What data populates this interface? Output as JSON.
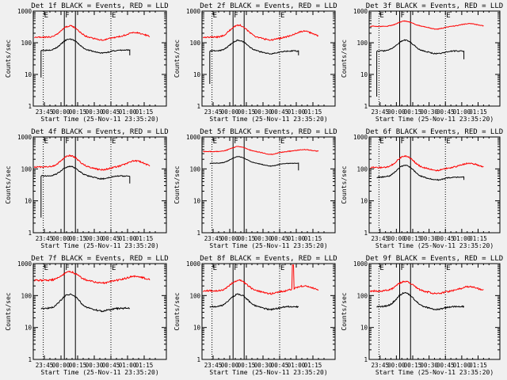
{
  "figure": {
    "common_title_suffix": "BLACK = Events, RED = LLD",
    "xlabel": "Start Time (25-Nov-11 23:35:20)",
    "ylabel": "Counts/sec",
    "colors": {
      "events": "#000000",
      "lld": "#ff0000"
    }
  },
  "chart_data": [
    {
      "type": "line",
      "title": "Det 1f BLACK = Events, RED = LLD",
      "xlabel": "Start Time (25-Nov-11 23:35:20)",
      "ylabel": "Counts/sec",
      "xlim": [
        -20,
        100
      ],
      "ylim": [
        1,
        1000
      ],
      "yscale": "log",
      "xticks": [
        "23:45",
        "00:00",
        "00:15",
        "00:30",
        "00:45",
        "01:00",
        "01:15"
      ],
      "xtick_pos": [
        -10,
        5,
        20,
        35,
        50,
        65,
        80
      ],
      "yticks": [
        "1",
        "10",
        "100",
        "1000"
      ],
      "marker_labels": [
        "E",
        "F",
        "E"
      ],
      "dotted_x": [
        -11,
        50
      ],
      "solid_x": [
        8,
        18
      ],
      "series": [
        {
          "name": "Events",
          "color": "#000000",
          "start": -13,
          "end": 67,
          "base": 58,
          "peak": 130,
          "startspike": 8,
          "endhook": 40,
          "noise": 0.04
        },
        {
          "name": "LLD",
          "color": "#ff0000",
          "start": -19,
          "end": 85,
          "base": 150,
          "peak": 340,
          "second": 210,
          "noise": 0.05
        }
      ]
    },
    {
      "type": "line",
      "title": "Det 2f BLACK = Events, RED = LLD",
      "xlabel": "Start Time (25-Nov-11 23:35:20)",
      "ylabel": "Counts/sec",
      "xlim": [
        -20,
        100
      ],
      "ylim": [
        1,
        1000
      ],
      "yscale": "log",
      "xticks": [
        "23:45",
        "00:00",
        "00:15",
        "00:30",
        "00:45",
        "01:00",
        "01:15"
      ],
      "xtick_pos": [
        -10,
        5,
        20,
        35,
        50,
        65,
        80
      ],
      "yticks": [
        "1",
        "10",
        "100",
        "1000"
      ],
      "marker_labels": [
        "E",
        "F",
        "E"
      ],
      "dotted_x": [
        -11,
        50
      ],
      "solid_x": [
        8,
        18
      ],
      "series": [
        {
          "name": "Events",
          "color": "#000000",
          "start": -13,
          "end": 67,
          "base": 55,
          "peak": 120,
          "startspike": 5,
          "endhook": 40,
          "noise": 0.04
        },
        {
          "name": "LLD",
          "color": "#ff0000",
          "start": -19,
          "end": 85,
          "base": 150,
          "peak": 360,
          "second": 230,
          "noise": 0.05
        }
      ]
    },
    {
      "type": "line",
      "title": "Det 3f BLACK = Events, RED = LLD",
      "xlabel": "Start Time (25-Nov-11 23:35:20)",
      "ylabel": "Counts/sec",
      "xlim": [
        -20,
        100
      ],
      "ylim": [
        1,
        1000
      ],
      "yscale": "log",
      "xticks": [
        "23:45",
        "00:00",
        "00:15",
        "00:30",
        "00:45",
        "01:00",
        "01:15"
      ],
      "xtick_pos": [
        -10,
        5,
        20,
        35,
        50,
        65,
        80
      ],
      "yticks": [
        "1",
        "10",
        "100",
        "1000"
      ],
      "marker_labels": [
        "E",
        "F",
        "E"
      ],
      "dotted_x": [
        -11,
        50
      ],
      "solid_x": [
        8,
        18
      ],
      "series": [
        {
          "name": "Events",
          "color": "#000000",
          "start": -13,
          "end": 67,
          "base": 55,
          "peak": 120,
          "startspike": 2,
          "endhook": 30,
          "noise": 0.04
        },
        {
          "name": "LLD",
          "color": "#ff0000",
          "start": -19,
          "end": 85,
          "base": 330,
          "peak": 480,
          "second": 400,
          "noise": 0.025
        }
      ]
    },
    {
      "type": "line",
      "title": "Det 4f BLACK = Events, RED = LLD",
      "xlabel": "Start Time (25-Nov-11 23:35:20)",
      "ylabel": "Counts/sec",
      "xlim": [
        -20,
        100
      ],
      "ylim": [
        1,
        1000
      ],
      "yscale": "log",
      "xticks": [
        "23:45",
        "00:00",
        "00:15",
        "00:30",
        "00:45",
        "01:00",
        "01:15"
      ],
      "xtick_pos": [
        -10,
        5,
        20,
        35,
        50,
        65,
        80
      ],
      "yticks": [
        "1",
        "10",
        "100",
        "1000"
      ],
      "marker_labels": [
        "E",
        "F",
        "E"
      ],
      "dotted_x": [
        -11,
        50
      ],
      "solid_x": [
        8,
        18
      ],
      "series": [
        {
          "name": "Events",
          "color": "#000000",
          "start": -13,
          "end": 67,
          "base": 60,
          "peak": 120,
          "startspike": 3,
          "endhook": 35,
          "noise": 0.04
        },
        {
          "name": "LLD",
          "color": "#ff0000",
          "start": -19,
          "end": 85,
          "base": 115,
          "peak": 260,
          "second": 180,
          "noise": 0.05
        }
      ]
    },
    {
      "type": "line",
      "title": "Det 5f BLACK = Events, RED = LLD",
      "xlabel": "Start Time (25-Nov-11 23:35:20)",
      "ylabel": "Counts/sec",
      "xlim": [
        -20,
        100
      ],
      "ylim": [
        1,
        1000
      ],
      "yscale": "log",
      "xticks": [
        "23:45",
        "00:00",
        "00:15",
        "00:30",
        "00:45",
        "01:00",
        "01:15"
      ],
      "xtick_pos": [
        -10,
        5,
        20,
        35,
        50,
        65,
        80
      ],
      "yticks": [
        "1",
        "10",
        "100",
        "1000"
      ],
      "marker_labels": [
        "E",
        "F",
        "E"
      ],
      "dotted_x": [
        -11,
        50
      ],
      "solid_x": [
        8,
        18
      ],
      "series": [
        {
          "name": "Events",
          "color": "#000000",
          "start": -13,
          "end": 67,
          "base": 150,
          "peak": 240,
          "startspike": null,
          "endhook": 90,
          "noise": 0.02
        },
        {
          "name": "LLD",
          "color": "#ff0000",
          "start": -19,
          "end": 85,
          "base": 350,
          "peak": 500,
          "second": 400,
          "noise": 0.025
        }
      ]
    },
    {
      "type": "line",
      "title": "Det 6f BLACK = Events, RED = LLD",
      "xlabel": "Start Time (25-Nov-11 23:35:20)",
      "ylabel": "Counts/sec",
      "xlim": [
        -20,
        100
      ],
      "ylim": [
        1,
        1000
      ],
      "yscale": "log",
      "xticks": [
        "23:45",
        "00:00",
        "00:15",
        "00:30",
        "00:45",
        "01:00",
        "01:15"
      ],
      "xtick_pos": [
        -10,
        5,
        20,
        35,
        50,
        65,
        80
      ],
      "yticks": [
        "1",
        "10",
        "100",
        "1000"
      ],
      "marker_labels": [
        "E",
        "F",
        "E"
      ],
      "dotted_x": [
        -11,
        50
      ],
      "solid_x": [
        8,
        18
      ],
      "series": [
        {
          "name": "Events",
          "color": "#000000",
          "start": -13,
          "end": 67,
          "base": 55,
          "peak": 130,
          "startspike": null,
          "endhook": 45,
          "noise": 0.04
        },
        {
          "name": "LLD",
          "color": "#ff0000",
          "start": -19,
          "end": 85,
          "base": 110,
          "peak": 250,
          "second": 150,
          "noise": 0.05
        }
      ]
    },
    {
      "type": "line",
      "title": "Det 7f BLACK = Events, RED = LLD",
      "xlabel": "Start Time (25-Nov-11 23:35:20)",
      "ylabel": "Counts/sec",
      "xlim": [
        -20,
        100
      ],
      "ylim": [
        1,
        1000
      ],
      "yscale": "log",
      "xticks": [
        "23:45",
        "00:00",
        "00:15",
        "00:30",
        "00:45",
        "01:00",
        "01:15"
      ],
      "xtick_pos": [
        -10,
        5,
        20,
        35,
        50,
        65,
        80
      ],
      "yticks": [
        "1",
        "10",
        "100",
        "1000"
      ],
      "marker_labels": [
        "E",
        "F",
        "E"
      ],
      "dotted_x": [
        -11,
        50
      ],
      "solid_x": [
        8,
        18
      ],
      "series": [
        {
          "name": "Events",
          "color": "#000000",
          "start": -13,
          "end": 67,
          "base": 40,
          "peak": 110,
          "startspike": null,
          "endhook": null,
          "noise": 0.06
        },
        {
          "name": "LLD",
          "color": "#ff0000",
          "start": -19,
          "end": 85,
          "base": 300,
          "peak": 550,
          "second": 400,
          "noise": 0.06
        }
      ]
    },
    {
      "type": "line",
      "title": "Det 8f BLACK = Events, RED = LLD",
      "xlabel": "Start Time (25-Nov-11 23:35:20)",
      "ylabel": "Counts/sec",
      "xlim": [
        -20,
        100
      ],
      "ylim": [
        1,
        1000
      ],
      "yscale": "log",
      "xticks": [
        "23:45",
        "00:00",
        "00:15",
        "00:30",
        "00:45",
        "01:00",
        "01:15"
      ],
      "xtick_pos": [
        -10,
        5,
        20,
        35,
        50,
        65,
        80
      ],
      "yticks": [
        "1",
        "10",
        "100",
        "1000"
      ],
      "marker_labels": [
        "E",
        "F",
        "E"
      ],
      "dotted_x": [
        -11,
        50
      ],
      "solid_x": [
        8,
        18
      ],
      "series": [
        {
          "name": "Events",
          "color": "#000000",
          "start": -13,
          "end": 67,
          "base": 45,
          "peak": 110,
          "startspike": null,
          "endhook": null,
          "noise": 0.05
        },
        {
          "name": "LLD",
          "color": "#ff0000",
          "start": -19,
          "end": 85,
          "base": 140,
          "peak": 300,
          "second": 200,
          "noise": 0.06,
          "flare_at": 62,
          "flare_peak": 900
        }
      ]
    },
    {
      "type": "line",
      "title": "Det 9f BLACK = Events, RED = LLD",
      "xlabel": "Start Time (25-Nov-11 23:35:20)",
      "ylabel": "Counts/sec",
      "xlim": [
        -20,
        100
      ],
      "ylim": [
        1,
        1000
      ],
      "yscale": "log",
      "xticks": [
        "23:45",
        "00:00",
        "00:15",
        "00:30",
        "00:45",
        "01:00",
        "01:15"
      ],
      "xtick_pos": [
        -10,
        5,
        20,
        35,
        50,
        65,
        80
      ],
      "yticks": [
        "1",
        "10",
        "100",
        "1000"
      ],
      "marker_labels": [
        "E",
        "F",
        "E"
      ],
      "dotted_x": [
        -11,
        50
      ],
      "solid_x": [
        8,
        18
      ],
      "series": [
        {
          "name": "Events",
          "color": "#000000",
          "start": -13,
          "end": 67,
          "base": 45,
          "peak": 120,
          "startspike": null,
          "endhook": null,
          "noise": 0.05
        },
        {
          "name": "LLD",
          "color": "#ff0000",
          "start": -19,
          "end": 85,
          "base": 140,
          "peak": 280,
          "second": 190,
          "noise": 0.06
        }
      ]
    }
  ]
}
